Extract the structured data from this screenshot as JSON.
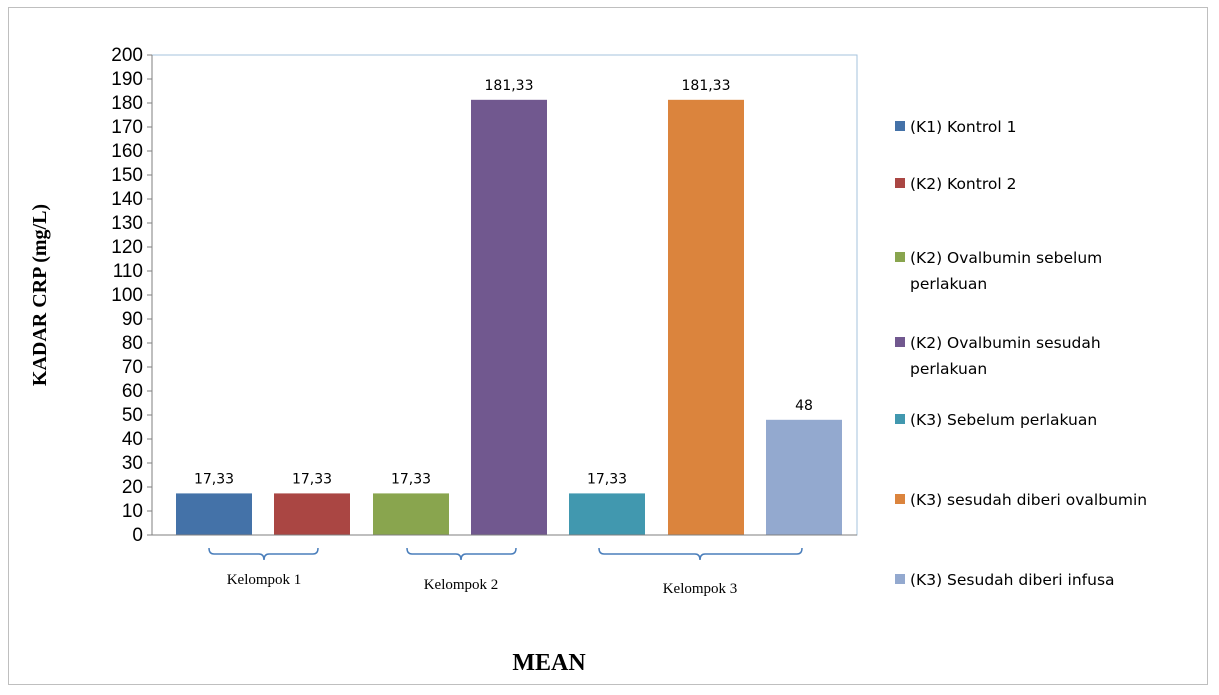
{
  "chart_data": {
    "type": "bar",
    "ylabel": "KADAR CRP (mg/L)",
    "xlabel": "MEAN",
    "ylim": [
      0,
      200
    ],
    "ytick_step": 10,
    "grid": false,
    "legend_position": "right",
    "series": [
      {
        "name": "(K1) Kontrol 1",
        "value": 17.33,
        "label": "17,33",
        "color": "#4472a8"
      },
      {
        "name": "(K2) Kontrol 2",
        "value": 17.33,
        "label": "17,33",
        "color": "#aa4643"
      },
      {
        "name": "(K2) Ovalbumin sebelum perlakuan",
        "value": 17.33,
        "label": "17,33",
        "color": "#89a54e"
      },
      {
        "name": "(K2) Ovalbumin sesudah perlakuan",
        "value": 181.33,
        "label": "181,33",
        "color": "#71588f"
      },
      {
        "name": "(K3) Sebelum perlakuan",
        "value": 17.33,
        "label": "17,33",
        "color": "#4198af"
      },
      {
        "name": "(K3) sesudah diberi ovalbumin",
        "value": 181.33,
        "label": "181,33",
        "color": "#db843d"
      },
      {
        "name": "(K3) Sesudah diberi infusa",
        "value": 48,
        "label": "48",
        "color": "#93a9cf"
      }
    ],
    "groups": [
      {
        "label": "Kelompok 1",
        "members": [
          0,
          1
        ]
      },
      {
        "label": "Kelompok 2",
        "members": [
          2,
          3
        ]
      },
      {
        "label": "Kelompok 3",
        "members": [
          4,
          5,
          6
        ]
      }
    ]
  }
}
